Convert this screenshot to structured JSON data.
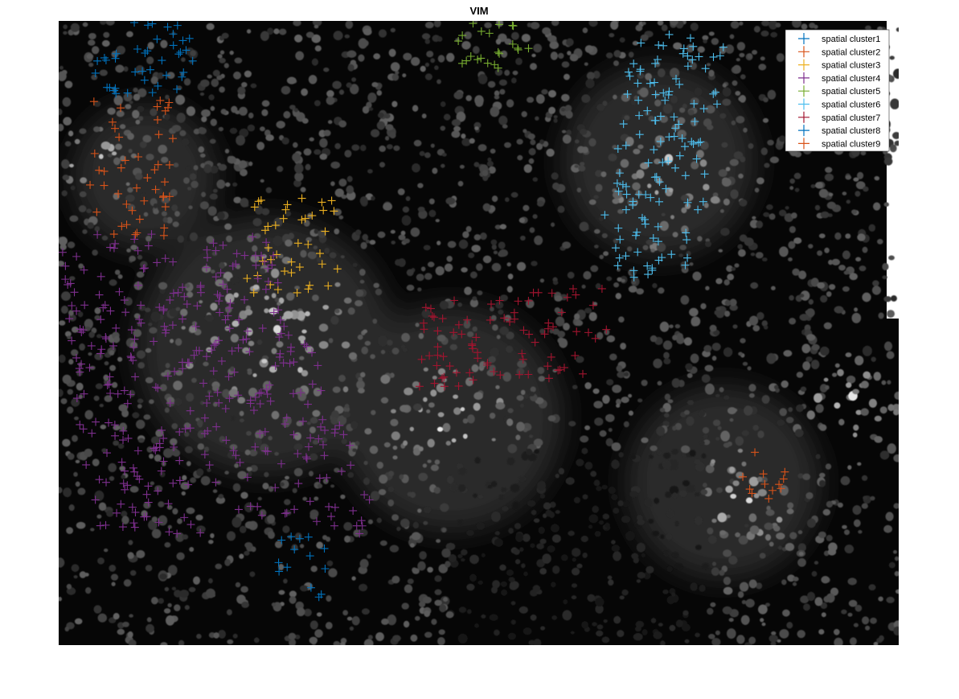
{
  "figure": {
    "title": "VIM"
  },
  "legend": {
    "placement": "top-right",
    "entries": [
      {
        "label": "spatial cluster1",
        "color": "#0072BD"
      },
      {
        "label": "spatial cluster2",
        "color": "#D95319"
      },
      {
        "label": "spatial cluster3",
        "color": "#EDB120"
      },
      {
        "label": "spatial cluster4",
        "color": "#7E2F8E"
      },
      {
        "label": "spatial cluster5",
        "color": "#77AC30"
      },
      {
        "label": "spatial cluster6",
        "color": "#4DBEEE"
      },
      {
        "label": "spatial cluster7",
        "color": "#A2142F"
      },
      {
        "label": "spatial cluster8",
        "color": "#0072BD"
      },
      {
        "label": "spatial cluster9",
        "color": "#D95319"
      }
    ]
  },
  "image": {
    "description_icon": "fluorescence-microscopy-tissue",
    "background_color": "#050505",
    "marker_symbol": "+"
  }
}
